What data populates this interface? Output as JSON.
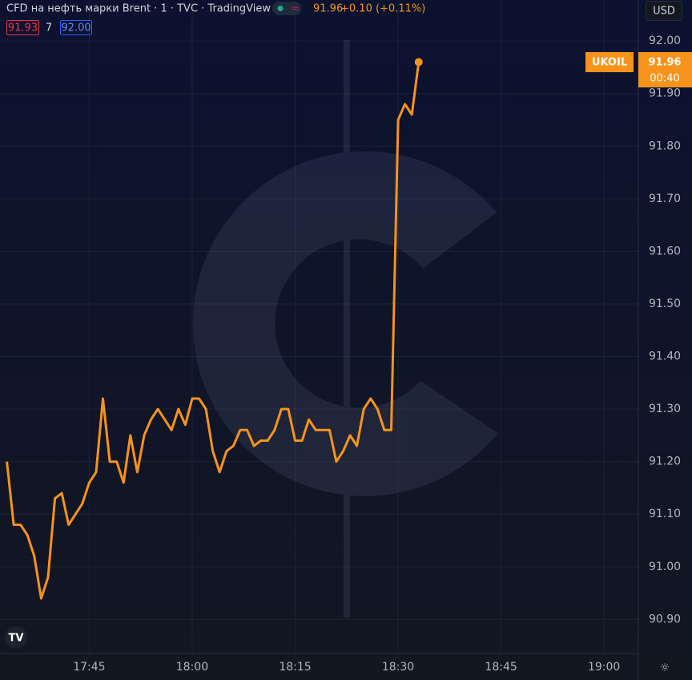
{
  "chart_data": {
    "type": "line",
    "title": "CFD на нефть марки Brent · 1 · TVC · TradingView",
    "change": "+0.10 (+0.11%)",
    "bid": "91.93",
    "spread": "7",
    "ask": "92.00",
    "currency": "USD",
    "countdown": "00:40",
    "x": [
      "17:33",
      "17:34",
      "17:35",
      "17:36",
      "17:37",
      "17:38",
      "17:39",
      "17:40",
      "17:41",
      "17:42",
      "17:43",
      "17:44",
      "17:45",
      "17:46",
      "17:47",
      "17:48",
      "17:49",
      "17:50",
      "17:51",
      "17:52",
      "17:53",
      "17:54",
      "17:55",
      "17:56",
      "17:57",
      "17:58",
      "17:59",
      "18:00",
      "18:01",
      "18:02",
      "18:03",
      "18:04",
      "18:05",
      "18:06",
      "18:07",
      "18:08",
      "18:09",
      "18:10",
      "18:11",
      "18:12",
      "18:13",
      "18:14",
      "18:15",
      "18:16",
      "18:17",
      "18:18",
      "18:19",
      "18:20",
      "18:21",
      "18:22",
      "18:23",
      "18:24",
      "18:25",
      "18:26",
      "18:27",
      "18:28",
      "18:29",
      "18:30",
      "18:31",
      "18:32",
      "18:33"
    ],
    "series": [
      {
        "name": "UKOIL",
        "color": "#f7931a",
        "values": [
          91.2,
          91.08,
          91.08,
          91.06,
          91.02,
          90.94,
          90.98,
          91.13,
          91.14,
          91.08,
          91.1,
          91.12,
          91.16,
          91.18,
          91.32,
          91.2,
          91.2,
          91.16,
          91.25,
          91.18,
          91.25,
          91.28,
          91.3,
          91.28,
          91.26,
          91.3,
          91.27,
          91.32,
          91.32,
          91.3,
          91.22,
          91.18,
          91.22,
          91.23,
          91.26,
          91.26,
          91.23,
          91.24,
          91.24,
          91.26,
          91.3,
          91.3,
          91.24,
          91.24,
          91.28,
          91.26,
          91.26,
          91.26,
          91.2,
          91.22,
          91.25,
          91.23,
          91.3,
          91.32,
          91.3,
          91.26,
          91.26,
          91.85,
          91.88,
          91.86,
          91.96
        ]
      }
    ],
    "xlim": [
      "17:32",
      "19:05"
    ],
    "xticks": [
      "17:45",
      "18:00",
      "18:15",
      "18:30",
      "18:45",
      "19:00"
    ],
    "ylim": [
      90.835,
      92.078
    ],
    "yticks": [
      {
        "value": 92.0,
        "label": "92.00"
      },
      {
        "value": 91.9,
        "label": "91.90"
      },
      {
        "value": 91.8,
        "label": "91.80"
      },
      {
        "value": 91.7,
        "label": "91.70"
      },
      {
        "value": 91.6,
        "label": "91.60"
      },
      {
        "value": 91.5,
        "label": "91.50"
      },
      {
        "value": 91.4,
        "label": "91.40"
      },
      {
        "value": 91.3,
        "label": "91.30"
      },
      {
        "value": 91.2,
        "label": "91.20"
      },
      {
        "value": 91.1,
        "label": "91.10"
      },
      {
        "value": 91.0,
        "label": "91.00"
      },
      {
        "value": 90.9,
        "label": "90.90"
      }
    ],
    "grid": true
  }
}
